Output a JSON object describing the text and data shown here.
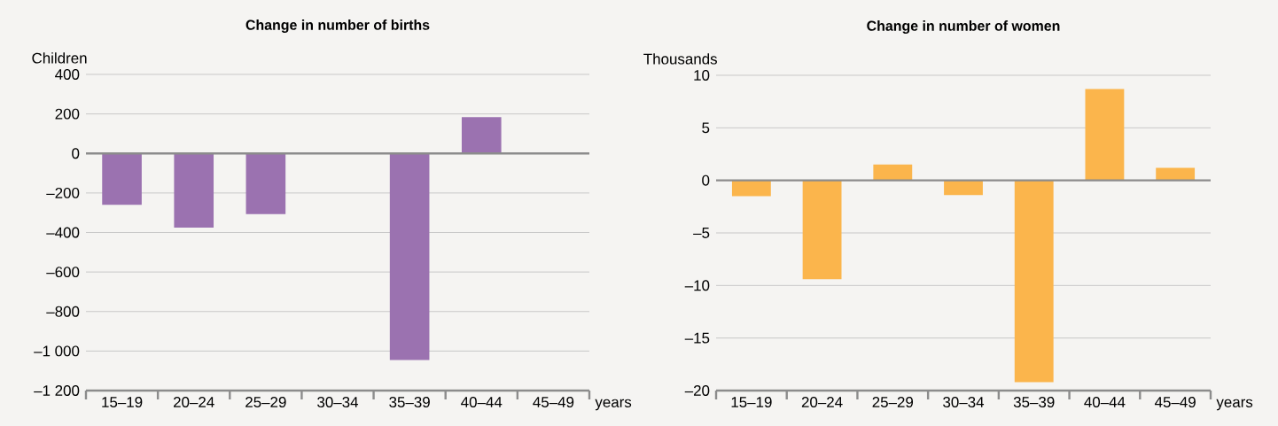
{
  "chart_data": [
    {
      "type": "bar",
      "title": "Change in number of  births",
      "ylabel": "Children",
      "xlabel": "years",
      "categories": [
        "15–19",
        "20–24",
        "25–29",
        "30–34",
        "35–39",
        "40–44",
        "45–49"
      ],
      "values": [
        -260,
        -375,
        -307,
        0,
        -1045,
        184,
        0
      ],
      "color": "#9b72b0",
      "ylim": [
        -1200,
        400
      ],
      "yticks": [
        {
          "value": -1200,
          "label": "–1 200"
        },
        {
          "value": -1000,
          "label": "–1 000"
        },
        {
          "value": -800,
          "label": "–800"
        },
        {
          "value": -600,
          "label": "–600"
        },
        {
          "value": -400,
          "label": "–400"
        },
        {
          "value": -200,
          "label": "–200"
        },
        0,
        200,
        400
      ],
      "grid": "y"
    },
    {
      "type": "bar",
      "title": "Change in number of women",
      "ylabel": "Thousands",
      "xlabel": "years",
      "categories": [
        "15–19",
        "20–24",
        "25–29",
        "30–34",
        "35–39",
        "40–44",
        "45–49"
      ],
      "values": [
        -1.5,
        -9.4,
        1.5,
        -1.4,
        -19.2,
        8.7,
        1.2
      ],
      "color": "#fbb54c",
      "ylim": [
        -20,
        10
      ],
      "yticks": [
        {
          "value": -20,
          "label": "–20"
        },
        {
          "value": -15,
          "label": "–15"
        },
        {
          "value": -10,
          "label": "–10"
        },
        {
          "value": -5,
          "label": "–5"
        },
        0,
        5,
        10
      ],
      "grid": "y"
    }
  ]
}
